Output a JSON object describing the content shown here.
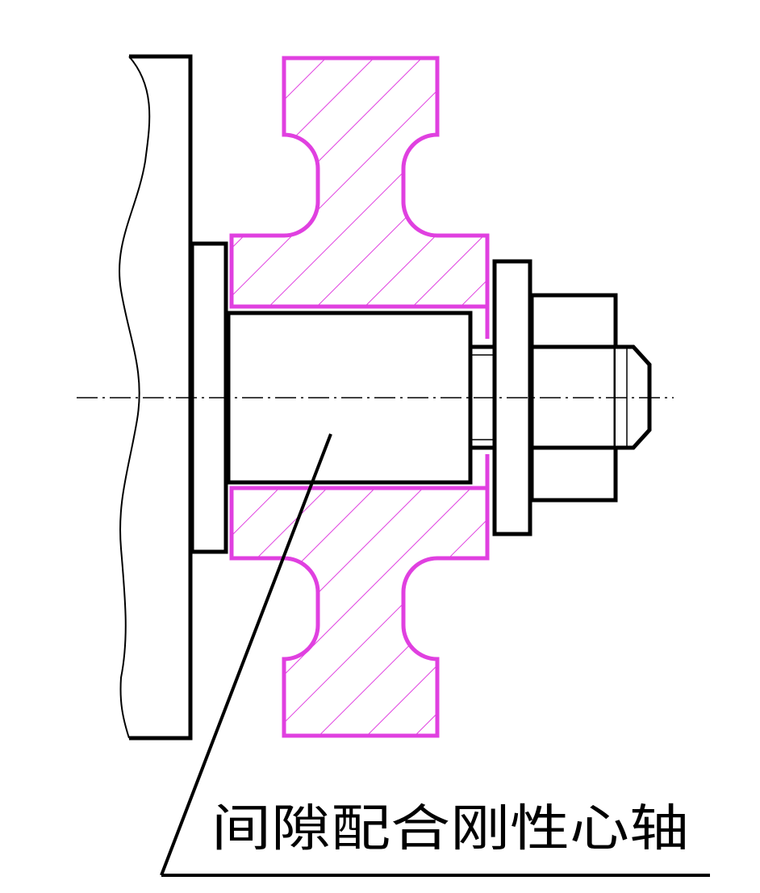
{
  "annotation": {
    "label": "间隙配合刚性心轴"
  },
  "colors": {
    "line": "#000000",
    "workpiece": "#e040e0",
    "background": "#ffffff"
  }
}
